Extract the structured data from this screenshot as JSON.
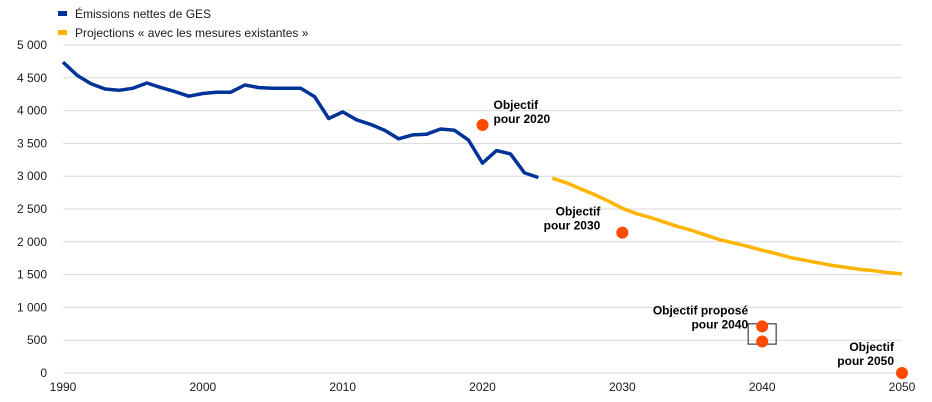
{
  "chart_data": {
    "type": "line",
    "title": "",
    "xlabel": "",
    "ylabel": "",
    "xlim": [
      1990,
      2050
    ],
    "ylim": [
      0,
      5000
    ],
    "x_ticks": [
      1990,
      2000,
      2010,
      2020,
      2030,
      2040,
      2050
    ],
    "y_ticks": [
      0,
      500,
      1000,
      1500,
      2000,
      2500,
      3000,
      3500,
      4000,
      4500,
      5000
    ],
    "y_tick_labels": [
      "0",
      "500",
      "1 000",
      "1 500",
      "2 000",
      "2 500",
      "3 000",
      "3 500",
      "4 000",
      "4 500",
      "5 000"
    ],
    "grid": "horizontal",
    "legend_position": "top-left",
    "series": [
      {
        "name": "Émissions nettes de GES",
        "color": "#003399",
        "x": [
          1990,
          1991,
          1992,
          1993,
          1994,
          1995,
          1996,
          1997,
          1998,
          1999,
          2000,
          2001,
          2002,
          2003,
          2004,
          2005,
          2006,
          2007,
          2008,
          2009,
          2010,
          2011,
          2012,
          2013,
          2014,
          2015,
          2016,
          2017,
          2018,
          2019,
          2020,
          2021,
          2022,
          2023,
          2024
        ],
        "y": [
          4740,
          4540,
          4410,
          4330,
          4310,
          4340,
          4420,
          4350,
          4290,
          4220,
          4260,
          4280,
          4280,
          4390,
          4350,
          4340,
          4340,
          4340,
          4210,
          3880,
          3980,
          3860,
          3790,
          3700,
          3570,
          3630,
          3640,
          3720,
          3700,
          3550,
          3200,
          3390,
          3340,
          3050,
          2980
        ]
      },
      {
        "name": "Projections « avec les mesures existantes »",
        "color": "#FFB400",
        "x": [
          2025,
          2026,
          2027,
          2028,
          2029,
          2030,
          2031,
          2032,
          2033,
          2034,
          2035,
          2036,
          2037,
          2038,
          2039,
          2040,
          2041,
          2042,
          2043,
          2044,
          2045,
          2046,
          2047,
          2048,
          2049,
          2050
        ],
        "y": [
          2970,
          2900,
          2810,
          2720,
          2620,
          2510,
          2430,
          2370,
          2300,
          2230,
          2170,
          2100,
          2030,
          1980,
          1930,
          1870,
          1820,
          1760,
          1720,
          1680,
          1640,
          1610,
          1580,
          1560,
          1530,
          1510
        ]
      }
    ],
    "targets": [
      {
        "x": 2020,
        "y": 3780,
        "label_lines": [
          "Objectif",
          "pour 2020"
        ]
      },
      {
        "x": 2030,
        "y": 2140,
        "label_lines": [
          "Objectif",
          "pour 2030"
        ]
      },
      {
        "x": 2040,
        "y": 710,
        "label_lines": [
          "Objectif proposé",
          "pour 2040"
        ]
      },
      {
        "x": 2040,
        "y": 480,
        "label_lines": []
      },
      {
        "x": 2050,
        "y": 0,
        "label_lines": [
          "Objectif",
          "pour 2050"
        ]
      }
    ],
    "target_color": "#FF4B00",
    "highlight_box": {
      "x": 2040,
      "y_min": 440,
      "y_max": 750
    }
  }
}
